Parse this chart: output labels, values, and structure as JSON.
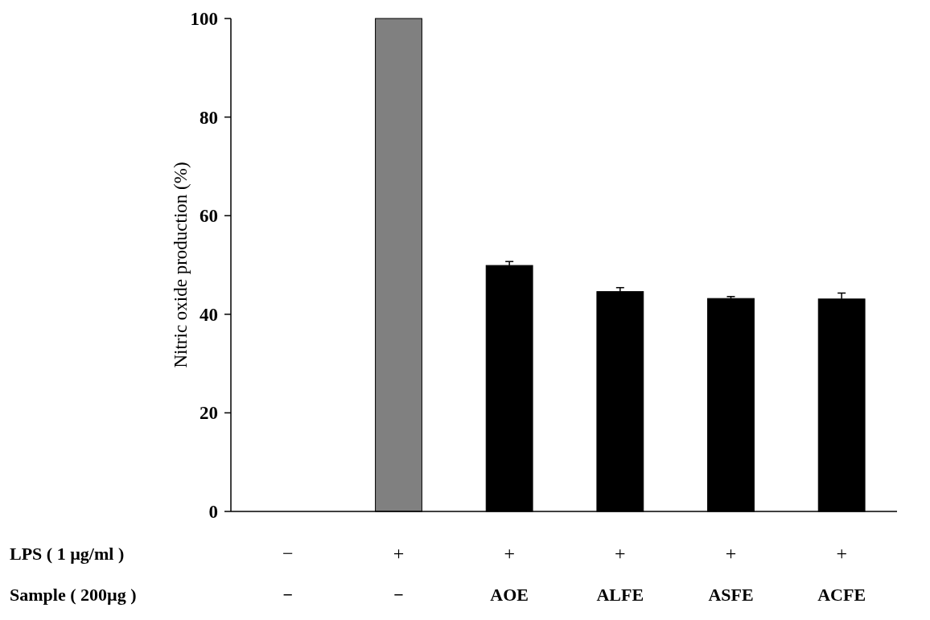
{
  "chart_data": {
    "type": "bar",
    "ylabel": "Nitric oxide production (%)",
    "categories": [
      "−",
      "−",
      "AOE",
      "ALFE",
      "ASFE",
      "ACFE"
    ],
    "values": [
      null,
      100,
      49.9,
      44.6,
      43.2,
      43.1
    ],
    "errors": [
      null,
      null,
      0.8,
      0.8,
      0.4,
      1.2
    ],
    "colors": [
      null,
      "#808080",
      "#000000",
      "#000000",
      "#000000",
      "#000000"
    ],
    "ylim": [
      0,
      100
    ],
    "yticks": [
      0,
      20,
      40,
      60,
      80,
      100
    ],
    "grid": false,
    "annotations": [
      "LPS ( 1 µg/ml )",
      "Sample ( 200µg )",
      "−",
      "+",
      "+",
      "+",
      "+",
      "+"
    ]
  }
}
